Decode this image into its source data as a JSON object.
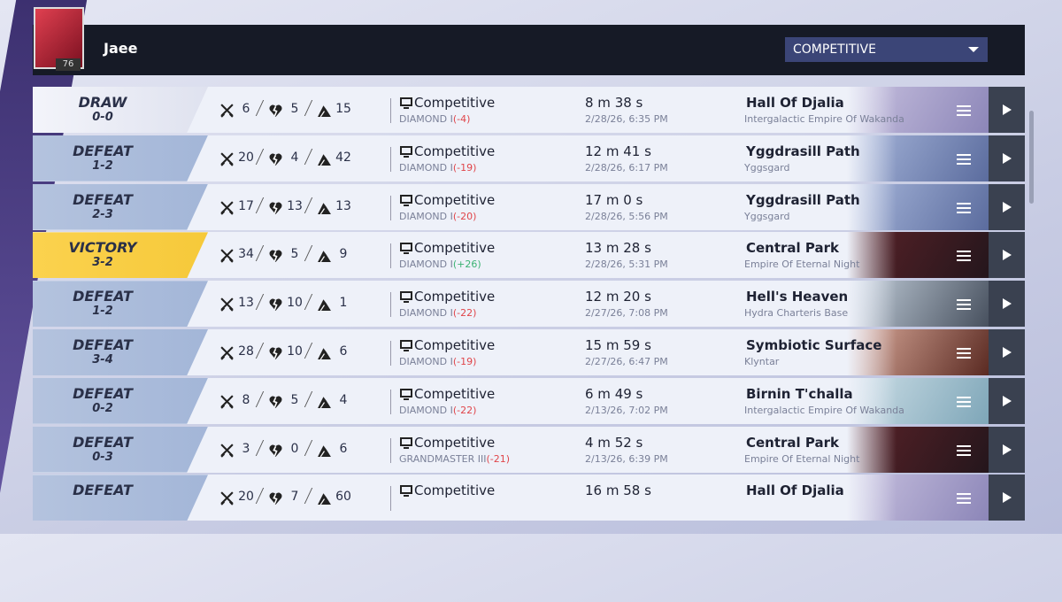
{
  "header": {
    "player": "Jaee",
    "level": "76",
    "filter": "COMPETITIVE"
  },
  "matches": [
    {
      "result": "DRAW",
      "score": "0-0",
      "kills": "6",
      "deaths": "5",
      "assists": "15",
      "mode": "Competitive",
      "rank": "DIAMOND I",
      "delta": "(-4)",
      "duration": "8 m 38 s",
      "date": "2/28/26, 6:35 PM",
      "map": "Hall Of Djalia",
      "region": "Intergalactic Empire Of Wakanda"
    },
    {
      "result": "DEFEAT",
      "score": "1-2",
      "kills": "20",
      "deaths": "4",
      "assists": "42",
      "mode": "Competitive",
      "rank": "DIAMOND I",
      "delta": "(-19)",
      "duration": "12 m 41 s",
      "date": "2/28/26, 6:17 PM",
      "map": "Yggdrasill Path",
      "region": "Yggsgard"
    },
    {
      "result": "DEFEAT",
      "score": "2-3",
      "kills": "17",
      "deaths": "13",
      "assists": "13",
      "mode": "Competitive",
      "rank": "DIAMOND I",
      "delta": "(-20)",
      "duration": "17 m 0 s",
      "date": "2/28/26, 5:56 PM",
      "map": "Yggdrasill Path",
      "region": "Yggsgard"
    },
    {
      "result": "VICTORY",
      "score": "3-2",
      "kills": "34",
      "deaths": "5",
      "assists": "9",
      "mode": "Competitive",
      "rank": "DIAMOND I",
      "delta": "(+26)",
      "duration": "13 m 28 s",
      "date": "2/28/26, 5:31 PM",
      "map": "Central Park",
      "region": "Empire Of Eternal Night"
    },
    {
      "result": "DEFEAT",
      "score": "1-2",
      "kills": "13",
      "deaths": "10",
      "assists": "1",
      "mode": "Competitive",
      "rank": "DIAMOND I",
      "delta": "(-22)",
      "duration": "12 m 20 s",
      "date": "2/27/26, 7:08 PM",
      "map": "Hell's Heaven",
      "region": "Hydra Charteris Base"
    },
    {
      "result": "DEFEAT",
      "score": "3-4",
      "kills": "28",
      "deaths": "10",
      "assists": "6",
      "mode": "Competitive",
      "rank": "DIAMOND I",
      "delta": "(-19)",
      "duration": "15 m 59 s",
      "date": "2/27/26, 6:47 PM",
      "map": "Symbiotic Surface",
      "region": "Klyntar"
    },
    {
      "result": "DEFEAT",
      "score": "0-2",
      "kills": "8",
      "deaths": "5",
      "assists": "4",
      "mode": "Competitive",
      "rank": "DIAMOND I",
      "delta": "(-22)",
      "duration": "6 m 49 s",
      "date": "2/13/26, 7:02 PM",
      "map": "Birnin T'challa",
      "region": "Intergalactic Empire Of Wakanda"
    },
    {
      "result": "DEFEAT",
      "score": "0-3",
      "kills": "3",
      "deaths": "0",
      "assists": "6",
      "mode": "Competitive",
      "rank": "GRANDMASTER III",
      "delta": "(-21)",
      "duration": "4 m 52 s",
      "date": "2/13/26, 6:39 PM",
      "map": "Central Park",
      "region": "Empire Of Eternal Night"
    },
    {
      "result": "DEFEAT",
      "kills": "20",
      "deaths": "7",
      "assists": "60",
      "mode": "Competitive",
      "duration": "16 m 58 s",
      "map": "Hall Of Djalia"
    }
  ]
}
